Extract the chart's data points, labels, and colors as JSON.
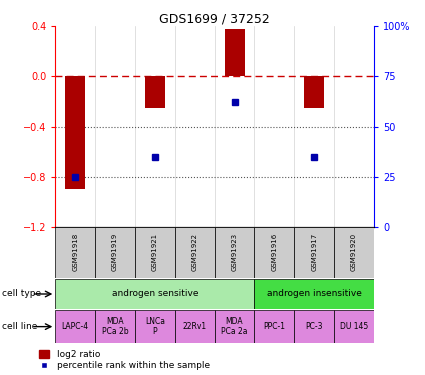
{
  "title": "GDS1699 / 37252",
  "samples": [
    "GSM91918",
    "GSM91919",
    "GSM91921",
    "GSM91922",
    "GSM91923",
    "GSM91916",
    "GSM91917",
    "GSM91920"
  ],
  "log2_ratio": [
    -0.9,
    0.0,
    -0.25,
    0.0,
    0.38,
    0.0,
    -0.25,
    0.0
  ],
  "percentile_rank": [
    25,
    null,
    35,
    null,
    62,
    null,
    35,
    null
  ],
  "ylim_left": [
    -1.2,
    0.4
  ],
  "ylim_right": [
    0,
    100
  ],
  "yticks_left": [
    0.4,
    0.0,
    -0.4,
    -0.8,
    -1.2
  ],
  "yticks_right": [
    100,
    75,
    50,
    25,
    0
  ],
  "cell_type_groups": [
    {
      "label": "androgen sensitive",
      "start": 0,
      "end": 5,
      "color": "#aaeaaa"
    },
    {
      "label": "androgen insensitive",
      "start": 5,
      "end": 8,
      "color": "#44dd44"
    }
  ],
  "cell_lines": [
    {
      "label": "LAPC-4",
      "start": 0,
      "end": 1
    },
    {
      "label": "MDA\nPCa 2b",
      "start": 1,
      "end": 2
    },
    {
      "label": "LNCa\nP",
      "start": 2,
      "end": 3
    },
    {
      "label": "22Rv1",
      "start": 3,
      "end": 4
    },
    {
      "label": "MDA\nPCa 2a",
      "start": 4,
      "end": 5
    },
    {
      "label": "PPC-1",
      "start": 5,
      "end": 6
    },
    {
      "label": "PC-3",
      "start": 6,
      "end": 7
    },
    {
      "label": "DU 145",
      "start": 7,
      "end": 8
    }
  ],
  "cell_line_color": "#dd88dd",
  "sample_box_color": "#cccccc",
  "bar_color": "#aa0000",
  "dot_color": "#0000aa",
  "bar_width": 0.5,
  "zero_line_color": "#cc0000",
  "hline_color": "#555555",
  "legend_labels": [
    "log2 ratio",
    "percentile rank within the sample"
  ]
}
